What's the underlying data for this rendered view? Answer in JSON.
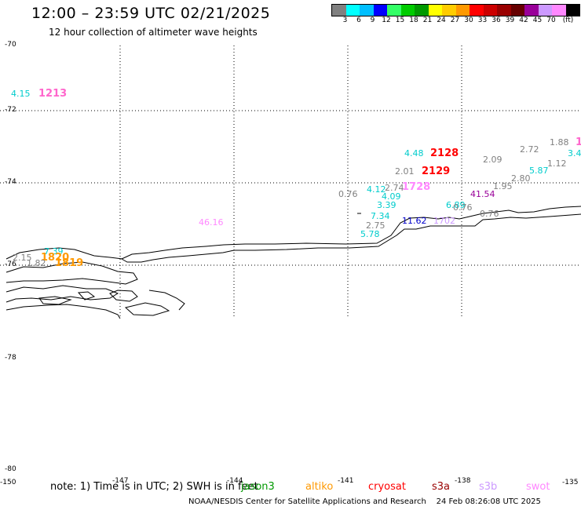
{
  "header": {
    "title": "12:00 – 23:59 UTC 02/21/2025",
    "subtitle": "12 hour collection of altimeter wave heights"
  },
  "colorbar": {
    "colors": [
      "#808080",
      "#00ffff",
      "#00bfff",
      "#0000ff",
      "#33ff66",
      "#00cc00",
      "#009900",
      "#ffff00",
      "#ffcc00",
      "#ff9900",
      "#ff0000",
      "#cc0000",
      "#990000",
      "#660000",
      "#990099",
      "#cc99ff",
      "#ff88ff",
      "#000000"
    ],
    "labels": [
      "3",
      "6",
      "9",
      "12",
      "15",
      "18",
      "21",
      "24",
      "27",
      "30",
      "33",
      "36",
      "39",
      "42",
      "45",
      "70",
      "(ft)"
    ]
  },
  "axes": {
    "lat_labels": [
      "-70",
      "-72",
      "-74",
      "-76",
      "-78",
      "-80"
    ],
    "lon_labels": [
      "-150",
      "-147",
      "-144",
      "-141",
      "-138",
      "-135"
    ]
  },
  "points": [
    {
      "text": "4.15",
      "color": "#00cccc"
    },
    {
      "text": "1213",
      "color": "#ff66cc"
    },
    {
      "text": "4.48",
      "color": "#00cccc"
    },
    {
      "text": "2128",
      "color": "#ff0000"
    },
    {
      "text": "2.01",
      "color": "#808080"
    },
    {
      "text": "2129",
      "color": "#ff0000"
    },
    {
      "text": "2.09",
      "color": "#808080"
    },
    {
      "text": "2.72",
      "color": "#808080"
    },
    {
      "text": "1.88",
      "color": "#808080"
    },
    {
      "text": "1",
      "color": "#ff66cc"
    },
    {
      "text": "3.4",
      "color": "#00cccc"
    },
    {
      "text": "1.12",
      "color": "#808080"
    },
    {
      "text": "5.87",
      "color": "#00cccc"
    },
    {
      "text": "2.80",
      "color": "#808080"
    },
    {
      "text": "1.95",
      "color": "#808080"
    },
    {
      "text": "41.54",
      "color": "#990099"
    },
    {
      "text": "0.76",
      "color": "#808080"
    },
    {
      "text": "4.12",
      "color": "#00cccc"
    },
    {
      "text": "2.74",
      "color": "#808080"
    },
    {
      "text": "1728",
      "color": "#ff88ff"
    },
    {
      "text": "4.09",
      "color": "#00cccc"
    },
    {
      "text": "3.39",
      "color": "#00cccc"
    },
    {
      "text": "6.89",
      "color": "#00cccc"
    },
    {
      "text": "0.76",
      "color": "#808080"
    },
    {
      "text": "0.76",
      "color": "#808080"
    },
    {
      "text": "7.34",
      "color": "#00cccc"
    },
    {
      "text": "11.62",
      "color": "#0000cc"
    },
    {
      "text": "1702",
      "color": "#cc99ff"
    },
    {
      "text": "2.75",
      "color": "#808080"
    },
    {
      "text": "5.78",
      "color": "#00cccc"
    },
    {
      "text": "46.16",
      "color": "#ff88ff"
    },
    {
      "text": "7.39",
      "color": "#00cccc"
    },
    {
      "text": "2.15",
      "color": "#808080"
    },
    {
      "text": "1820",
      "color": "#ff9900"
    },
    {
      "text": "1.82",
      "color": "#808080"
    },
    {
      "text": "1819",
      "color": "#ff9900"
    }
  ],
  "footer": {
    "note": "note: 1) Time is in UTC; 2) SWH is in feet",
    "satellites": [
      {
        "name": "jason3",
        "color": "#009900"
      },
      {
        "name": "altiko",
        "color": "#ff9900"
      },
      {
        "name": "cryosat",
        "color": "#ff0000"
      },
      {
        "name": "s3a",
        "color": "#990000"
      },
      {
        "name": "s3b",
        "color": "#cc99ff"
      },
      {
        "name": "swot",
        "color": "#ff88ff"
      }
    ],
    "credit": "NOAA/NESDIS Center for Satellite Applications and Research",
    "timestamp": "24 Feb 08:26:08 UTC 2025"
  }
}
